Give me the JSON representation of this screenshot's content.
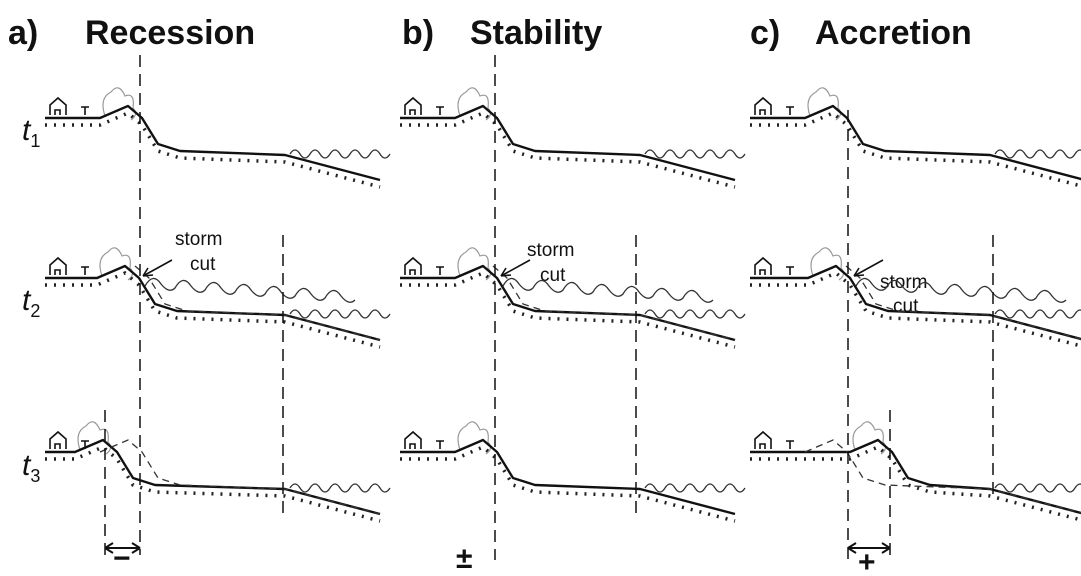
{
  "panels": [
    {
      "letter": "a)",
      "title": "Recession",
      "storm_label": [
        "storm",
        "cut"
      ],
      "change_symbol": "−"
    },
    {
      "letter": "b)",
      "title": "Stability",
      "storm_label": [
        "storm",
        "cut"
      ],
      "change_symbol": "±"
    },
    {
      "letter": "c)",
      "title": "Accretion",
      "storm_label": [
        "storm",
        "cut"
      ],
      "change_symbol": "+"
    }
  ],
  "time_labels": [
    {
      "base": "t",
      "sub": "1"
    },
    {
      "base": "t",
      "sub": "2"
    },
    {
      "base": "t",
      "sub": "3"
    }
  ]
}
